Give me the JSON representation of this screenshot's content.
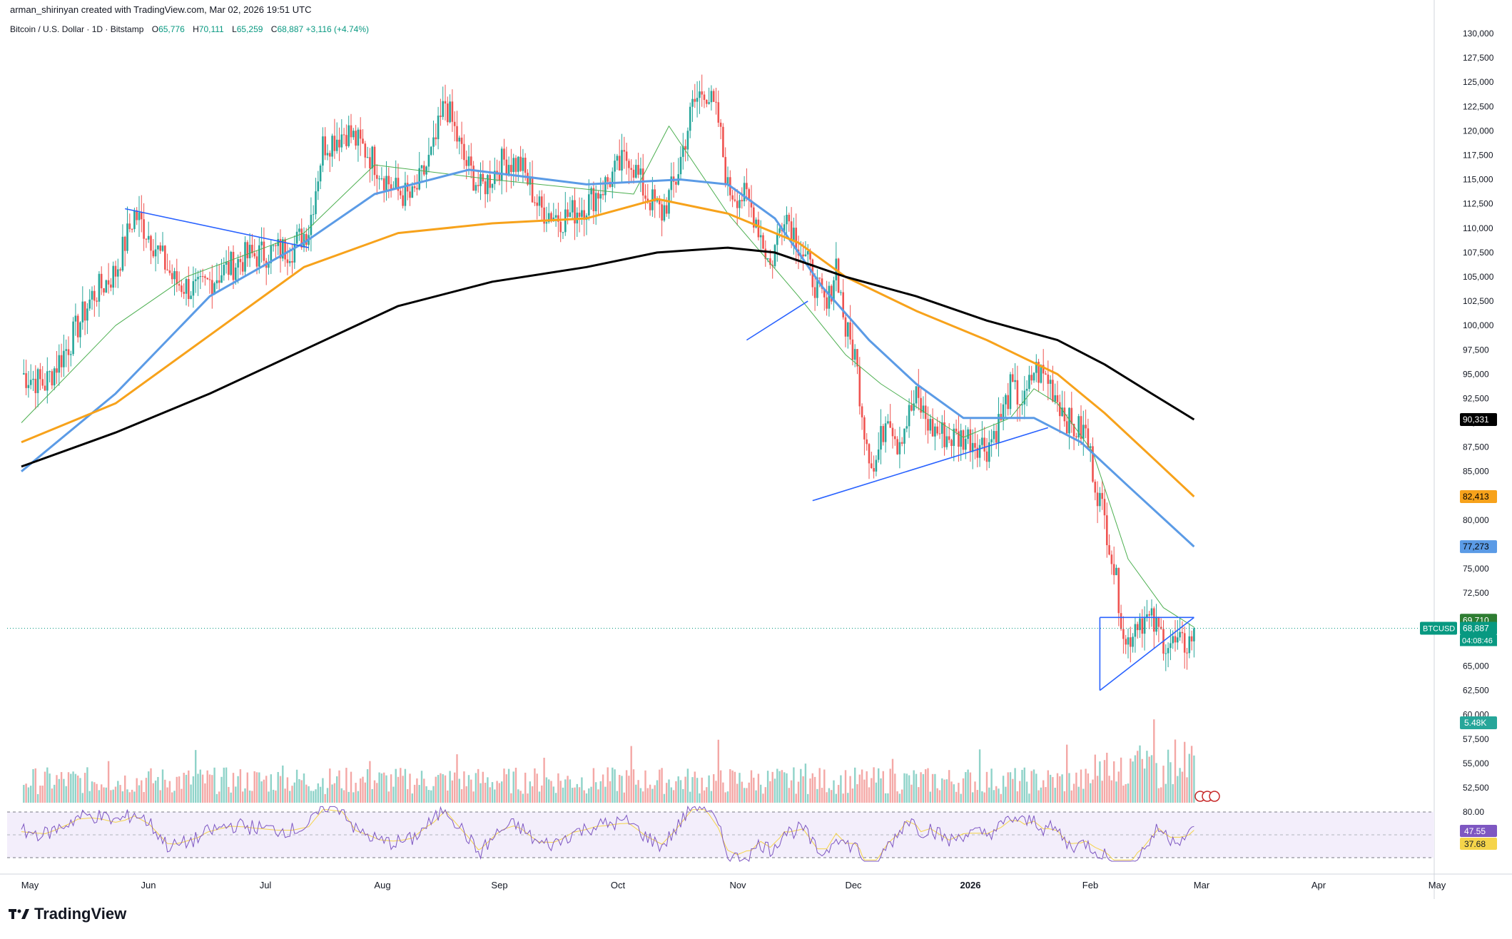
{
  "header": {
    "attribution": "arman_shirinyan created with TradingView.com, Mar 02, 2026 19:51 UTC",
    "symbol": "Bitcoin / U.S. Dollar · 1D · Bitstamp",
    "open_label": "O",
    "open": "65,776",
    "high_label": "H",
    "high": "70,111",
    "low_label": "L",
    "low": "65,259",
    "close_label": "C",
    "close": "68,887",
    "change": "+3,116 (+4.74%)"
  },
  "brand": {
    "name": "TradingView"
  },
  "colors": {
    "up": "#26a69a",
    "down": "#ef5350",
    "ma_short": "#4caf50",
    "ma_blue": "#5b9be6",
    "ma_orange": "#f7a21b",
    "ma_black": "#000000",
    "trendline": "#2962ff",
    "rsi": "#7e57c2",
    "rsi_ma": "#f5d44a",
    "vol_up": "#8fd3c9",
    "vol_down": "#f4a8a6"
  },
  "chart_data": {
    "type": "candlestick",
    "x_axis_labels": [
      "May",
      "Jun",
      "Jul",
      "Aug",
      "Sep",
      "Oct",
      "Nov",
      "Dec",
      "2026",
      "Feb",
      "Mar",
      "Apr",
      "May"
    ],
    "y_axis_ticks": [
      "130,000",
      "127,500",
      "125,000",
      "122,500",
      "120,000",
      "117,500",
      "115,000",
      "112,500",
      "110,000",
      "107,500",
      "105,000",
      "102,500",
      "100,000",
      "97,500",
      "95,000",
      "92,500",
      "90,000",
      "87,500",
      "85,000",
      "82,500",
      "80,000",
      "77,500",
      "75,000",
      "72,500",
      "70,000",
      "67,500",
      "65,000",
      "62,500",
      "60,000",
      "57,500",
      "55,000",
      "52,500"
    ],
    "price_points": [
      [
        0,
        95000
      ],
      [
        10,
        94000
      ],
      [
        20,
        98000
      ],
      [
        30,
        103000
      ],
      [
        40,
        105500
      ],
      [
        48,
        111500
      ],
      [
        55,
        109000
      ],
      [
        65,
        104500
      ],
      [
        75,
        103500
      ],
      [
        85,
        105500
      ],
      [
        95,
        107000
      ],
      [
        105,
        107500
      ],
      [
        115,
        108000
      ],
      [
        122,
        110000
      ],
      [
        128,
        118500
      ],
      [
        138,
        120000
      ],
      [
        148,
        117500
      ],
      [
        158,
        114000
      ],
      [
        166,
        113000
      ],
      [
        175,
        118000
      ],
      [
        180,
        123000
      ],
      [
        188,
        117000
      ],
      [
        195,
        114000
      ],
      [
        205,
        117000
      ],
      [
        212,
        116500
      ],
      [
        220,
        112000
      ],
      [
        230,
        111000
      ],
      [
        240,
        112500
      ],
      [
        248,
        114500
      ],
      [
        258,
        117500
      ],
      [
        265,
        113500
      ],
      [
        272,
        111500
      ],
      [
        278,
        115000
      ],
      [
        285,
        122500
      ],
      [
        290,
        124500
      ],
      [
        296,
        121000
      ],
      [
        300,
        114000
      ],
      [
        308,
        113000
      ],
      [
        312,
        111000
      ],
      [
        318,
        106000
      ],
      [
        324,
        112000
      ],
      [
        330,
        108500
      ],
      [
        336,
        105000
      ],
      [
        342,
        101500
      ],
      [
        346,
        106500
      ],
      [
        350,
        99500
      ],
      [
        354,
        97000
      ],
      [
        358,
        89500
      ],
      [
        362,
        85000
      ],
      [
        368,
        91500
      ],
      [
        372,
        88000
      ],
      [
        380,
        92500
      ],
      [
        386,
        89500
      ],
      [
        394,
        88500
      ],
      [
        402,
        88500
      ],
      [
        410,
        87500
      ],
      [
        416,
        90500
      ],
      [
        420,
        93500
      ],
      [
        426,
        92000
      ],
      [
        430,
        95500
      ],
      [
        436,
        94500
      ],
      [
        440,
        92500
      ],
      [
        446,
        89500
      ],
      [
        452,
        89000
      ],
      [
        456,
        84000
      ],
      [
        462,
        78000
      ],
      [
        466,
        72000
      ],
      [
        469,
        67000
      ],
      [
        474,
        70000
      ],
      [
        480,
        69500
      ],
      [
        486,
        67500
      ],
      [
        492,
        67000
      ],
      [
        496,
        67500
      ],
      [
        498,
        68887
      ]
    ],
    "moving_averages": [
      {
        "name": "",
        "period_hint": "short",
        "color": "#4caf50",
        "points": [
          [
            0,
            90000
          ],
          [
            40,
            100000
          ],
          [
            70,
            105000
          ],
          [
            120,
            109500
          ],
          [
            150,
            116500
          ],
          [
            200,
            115000
          ],
          [
            260,
            113500
          ],
          [
            275,
            120500
          ],
          [
            300,
            111500
          ],
          [
            330,
            103000
          ],
          [
            350,
            97000
          ],
          [
            365,
            94000
          ],
          [
            400,
            88500
          ],
          [
            420,
            90500
          ],
          [
            430,
            93500
          ],
          [
            440,
            92000
          ],
          [
            455,
            87000
          ],
          [
            470,
            76000
          ],
          [
            485,
            71000
          ],
          [
            498,
            69000
          ]
        ]
      },
      {
        "name": "",
        "period_hint": "50",
        "color": "#5b9be6",
        "points": [
          [
            0,
            85000
          ],
          [
            40,
            93000
          ],
          [
            80,
            103000
          ],
          [
            120,
            108500
          ],
          [
            150,
            113500
          ],
          [
            190,
            116000
          ],
          [
            240,
            114500
          ],
          [
            280,
            115000
          ],
          [
            300,
            114500
          ],
          [
            320,
            111000
          ],
          [
            340,
            104000
          ],
          [
            360,
            98500
          ],
          [
            380,
            94000
          ],
          [
            400,
            90500
          ],
          [
            430,
            90500
          ],
          [
            450,
            88000
          ],
          [
            470,
            83500
          ],
          [
            498,
            77273
          ]
        ]
      },
      {
        "name": "",
        "period_hint": "100",
        "color": "#f7a21b",
        "points": [
          [
            0,
            88000
          ],
          [
            40,
            92000
          ],
          [
            80,
            99000
          ],
          [
            120,
            106000
          ],
          [
            160,
            109500
          ],
          [
            200,
            110500
          ],
          [
            240,
            111000
          ],
          [
            270,
            113000
          ],
          [
            300,
            111500
          ],
          [
            330,
            108500
          ],
          [
            350,
            105000
          ],
          [
            380,
            101500
          ],
          [
            410,
            98500
          ],
          [
            440,
            95000
          ],
          [
            460,
            91000
          ],
          [
            480,
            86500
          ],
          [
            498,
            82413
          ]
        ]
      },
      {
        "name": "",
        "period_hint": "200",
        "color": "#000000",
        "points": [
          [
            0,
            85500
          ],
          [
            40,
            89000
          ],
          [
            80,
            93000
          ],
          [
            120,
            97500
          ],
          [
            160,
            102000
          ],
          [
            200,
            104500
          ],
          [
            240,
            106000
          ],
          [
            270,
            107500
          ],
          [
            300,
            108000
          ],
          [
            320,
            107500
          ],
          [
            350,
            105000
          ],
          [
            380,
            103000
          ],
          [
            410,
            100500
          ],
          [
            440,
            98500
          ],
          [
            460,
            96000
          ],
          [
            480,
            93000
          ],
          [
            498,
            90331
          ]
        ]
      }
    ],
    "trendlines": [
      {
        "from": [
          44,
          112000
        ],
        "to": [
          122,
          108000
        ]
      },
      {
        "from": [
          308,
          98500
        ],
        "to": [
          334,
          102500
        ]
      },
      {
        "from": [
          336,
          82000
        ],
        "to": [
          436,
          89500
        ]
      },
      {
        "from": [
          458,
          70000
        ],
        "to": [
          498,
          70000
        ]
      },
      {
        "from": [
          458,
          62500
        ],
        "to": [
          498,
          70000
        ]
      },
      {
        "from": [
          458,
          62500
        ],
        "to": [
          458,
          70000
        ]
      }
    ],
    "price_labels": [
      {
        "value": 90331,
        "text": "90,331",
        "bg": "#000000",
        "fg": "#ffffff"
      },
      {
        "value": 82413,
        "text": "82,413",
        "bg": "#f7a21b",
        "fg": "#000000"
      },
      {
        "value": 77273,
        "text": "77,273",
        "bg": "#5b9be6",
        "fg": "#000000"
      },
      {
        "value": 69710,
        "text": "69,710",
        "bg": "#2e7d32",
        "fg": "#ffffff"
      },
      {
        "value": 68887,
        "text": "68,887",
        "bg": "#089981",
        "fg": "#ffffff"
      }
    ],
    "symbol_tag": "BTCUSD",
    "countdown": "04:08:46",
    "volume_label": "5.48K",
    "rsi": {
      "ticks": [
        "80.00"
      ],
      "value_label": "47.55",
      "ma_label": "37.68",
      "upper": 70,
      "lower": 30
    }
  }
}
